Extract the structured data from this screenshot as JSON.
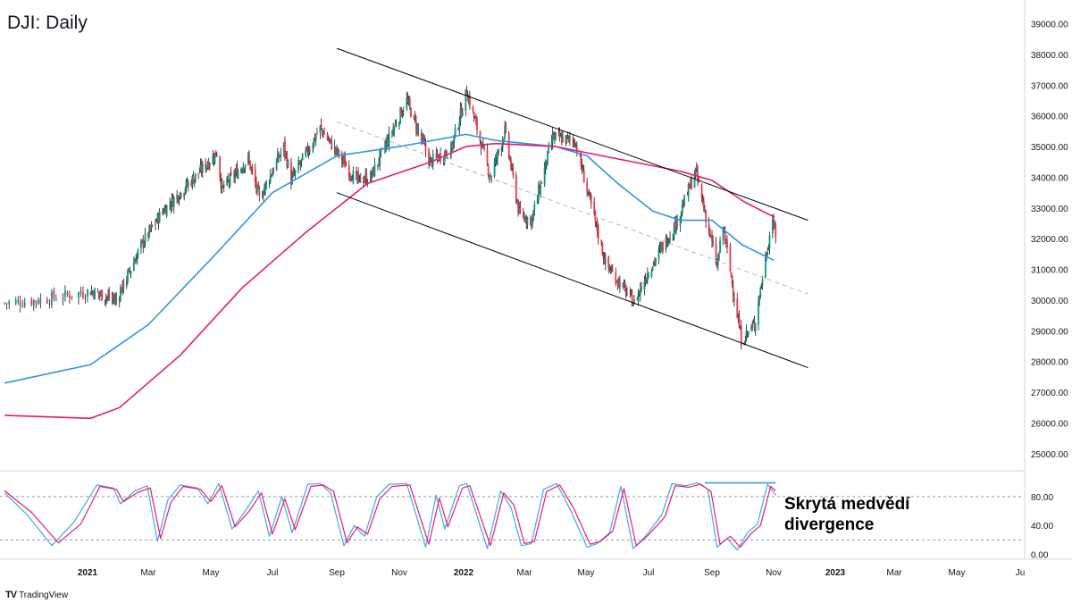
{
  "chart_title": "DJI: Daily",
  "watermark": "TradingView",
  "annotation": {
    "line1": "Skrytá medvědí",
    "line2": "divergence"
  },
  "colors": {
    "ma_fast": "#2f94e6",
    "ma_slow": "#e5196b",
    "stoch_k": "#42a5f5",
    "stoch_d": "#e91e63",
    "candle_up": "#089981",
    "candle_down": "#f23645",
    "trendline": "#000000",
    "midline": "#b2b5be",
    "divergence_line": "#2196f3",
    "axis_text": "#131722"
  },
  "chart_data": [
    {
      "type": "candlestick",
      "title": "DJI: Daily",
      "y_axis_position": "right",
      "ylim": [
        24500,
        39600
      ],
      "y_ticks": [
        "39000.00",
        "38000.00",
        "37000.00",
        "36000.00",
        "35000.00",
        "34000.00",
        "33000.00",
        "32000.00",
        "31000.00",
        "30000.00",
        "29000.00",
        "28000.00",
        "27000.00",
        "26000.00",
        "25000.00"
      ],
      "x_ticks": [
        "2021",
        "Mar",
        "May",
        "Jul",
        "Sep",
        "Nov",
        "2022",
        "Mar",
        "May",
        "Jul",
        "Sep",
        "Nov",
        "2023",
        "Mar",
        "May",
        "Ju"
      ],
      "close_path": [
        [
          "2020-11-25",
          29900
        ],
        [
          "2020-12-10",
          30000
        ],
        [
          "2021-01-04",
          30300
        ],
        [
          "2021-01-29",
          30000
        ],
        [
          "2021-02-24",
          31900
        ],
        [
          "2021-03-15",
          32900
        ],
        [
          "2021-04-15",
          34000
        ],
        [
          "2021-05-07",
          34800
        ],
        [
          "2021-05-12",
          33600
        ],
        [
          "2021-06-07",
          34600
        ],
        [
          "2021-06-18",
          33300
        ],
        [
          "2021-07-12",
          35000
        ],
        [
          "2021-07-19",
          33900
        ],
        [
          "2021-08-16",
          35600
        ],
        [
          "2021-09-20",
          33900
        ],
        [
          "2021-10-04",
          34000
        ],
        [
          "2021-11-08",
          36500
        ],
        [
          "2021-11-30",
          34500
        ],
        [
          "2021-12-20",
          34900
        ],
        [
          "2022-01-04",
          36800
        ],
        [
          "2022-01-27",
          34000
        ],
        [
          "2022-02-10",
          35500
        ],
        [
          "2022-02-24",
          32800
        ],
        [
          "2022-03-08",
          32600
        ],
        [
          "2022-03-29",
          35300
        ],
        [
          "2022-04-20",
          35200
        ],
        [
          "2022-05-20",
          31200
        ],
        [
          "2022-06-17",
          29900
        ],
        [
          "2022-06-30",
          30900
        ],
        [
          "2022-07-28",
          32500
        ],
        [
          "2022-08-16",
          34200
        ],
        [
          "2022-09-06",
          31100
        ],
        [
          "2022-09-12",
          32400
        ],
        [
          "2022-09-30",
          28700
        ],
        [
          "2022-10-13",
          29200
        ],
        [
          "2022-10-31",
          32700
        ],
        [
          "2022-11-03",
          32000
        ]
      ],
      "series": [
        {
          "name": "",
          "kind": "moving_average",
          "color": "#2f94e6",
          "points": [
            [
              "2020-11-25",
              27300
            ],
            [
              "2021-01-04",
              27900
            ],
            [
              "2021-03-01",
              29200
            ],
            [
              "2021-05-03",
              31400
            ],
            [
              "2021-07-01",
              33500
            ],
            [
              "2021-09-01",
              34700
            ],
            [
              "2021-11-01",
              35000
            ],
            [
              "2022-01-03",
              35400
            ],
            [
              "2022-02-01",
              35200
            ],
            [
              "2022-04-01",
              35000
            ],
            [
              "2022-05-02",
              34700
            ],
            [
              "2022-06-01",
              33800
            ],
            [
              "2022-07-05",
              32900
            ],
            [
              "2022-08-01",
              32600
            ],
            [
              "2022-09-01",
              32600
            ],
            [
              "2022-10-01",
              31800
            ],
            [
              "2022-11-01",
              31300
            ]
          ]
        },
        {
          "name": "",
          "kind": "moving_average",
          "color": "#e5196b",
          "points": [
            [
              "2020-11-25",
              26250
            ],
            [
              "2021-01-04",
              26150
            ],
            [
              "2021-02-01",
              26500
            ],
            [
              "2021-04-01",
              28200
            ],
            [
              "2021-06-01",
              30400
            ],
            [
              "2021-08-02",
              32200
            ],
            [
              "2021-10-01",
              33800
            ],
            [
              "2021-12-01",
              34500
            ],
            [
              "2022-01-03",
              35000
            ],
            [
              "2022-02-01",
              35100
            ],
            [
              "2022-04-01",
              35000
            ],
            [
              "2022-06-01",
              34600
            ],
            [
              "2022-08-01",
              34200
            ],
            [
              "2022-09-01",
              33900
            ],
            [
              "2022-10-03",
              33200
            ],
            [
              "2022-11-02",
              32700
            ]
          ]
        }
      ],
      "lines": [
        {
          "kind": "channel_upper",
          "from": [
            "2021-09-01",
            38200
          ],
          "to": [
            "2022-12-05",
            32600
          ]
        },
        {
          "kind": "channel_lower",
          "from": [
            "2021-09-01",
            33500
          ],
          "to": [
            "2022-12-05",
            27800
          ]
        },
        {
          "kind": "channel_midline",
          "from": [
            "2021-09-01",
            35800
          ],
          "to": [
            "2022-12-05",
            30200
          ]
        }
      ]
    },
    {
      "type": "line",
      "title": "",
      "y_axis_position": "right",
      "ylim": [
        -8,
        112
      ],
      "y_ticks": [
        "80.00",
        "40.00",
        "0.00"
      ],
      "reference_lines": [
        80,
        20
      ],
      "divergence_line": {
        "from": [
          "2022-08-25",
          99
        ],
        "to": [
          "2022-11-03",
          99
        ]
      },
      "series": [
        {
          "name": "",
          "kind": "stochastic_k",
          "color": "#42a5f5",
          "points": [
            [
              "2020-11-25",
              85
            ],
            [
              "2020-12-05",
              55
            ],
            [
              "2020-12-16",
              12
            ],
            [
              "2020-12-26",
              45
            ],
            [
              "2021-01-10",
              96
            ],
            [
              "2021-01-26",
              92
            ],
            [
              "2021-02-02",
              70
            ],
            [
              "2021-02-16",
              88
            ],
            [
              "2021-02-28",
              95
            ],
            [
              "2021-03-10",
              18
            ],
            [
              "2021-03-20",
              75
            ],
            [
              "2021-04-01",
              96
            ],
            [
              "2021-04-18",
              92
            ],
            [
              "2021-04-28",
              70
            ],
            [
              "2021-05-09",
              98
            ],
            [
              "2021-05-22",
              35
            ],
            [
              "2021-06-05",
              62
            ],
            [
              "2021-06-17",
              88
            ],
            [
              "2021-06-28",
              25
            ],
            [
              "2021-07-10",
              80
            ],
            [
              "2021-07-20",
              30
            ],
            [
              "2021-08-04",
              97
            ],
            [
              "2021-08-16",
              98
            ],
            [
              "2021-08-26",
              85
            ],
            [
              "2021-09-08",
              12
            ],
            [
              "2021-09-18",
              40
            ],
            [
              "2021-09-28",
              25
            ],
            [
              "2021-10-10",
              80
            ],
            [
              "2021-10-22",
              97
            ],
            [
              "2021-11-08",
              98
            ],
            [
              "2021-11-26",
              10
            ],
            [
              "2021-12-06",
              82
            ],
            [
              "2021-12-14",
              35
            ],
            [
              "2021-12-28",
              95
            ],
            [
              "2022-01-04",
              98
            ],
            [
              "2022-01-24",
              8
            ],
            [
              "2022-02-06",
              88
            ],
            [
              "2022-02-16",
              65
            ],
            [
              "2022-02-26",
              12
            ],
            [
              "2022-03-08",
              15
            ],
            [
              "2022-03-20",
              90
            ],
            [
              "2022-04-02",
              98
            ],
            [
              "2022-04-16",
              60
            ],
            [
              "2022-05-02",
              10
            ],
            [
              "2022-05-12",
              15
            ],
            [
              "2022-05-24",
              30
            ],
            [
              "2022-06-04",
              94
            ],
            [
              "2022-06-16",
              8
            ],
            [
              "2022-06-28",
              25
            ],
            [
              "2022-07-14",
              55
            ],
            [
              "2022-07-24",
              98
            ],
            [
              "2022-08-06",
              95
            ],
            [
              "2022-08-18",
              99
            ],
            [
              "2022-08-28",
              90
            ],
            [
              "2022-09-06",
              10
            ],
            [
              "2022-09-16",
              22
            ],
            [
              "2022-09-26",
              6
            ],
            [
              "2022-10-06",
              30
            ],
            [
              "2022-10-16",
              42
            ],
            [
              "2022-10-26",
              97
            ],
            [
              "2022-11-03",
              82
            ]
          ]
        },
        {
          "name": "",
          "kind": "stochastic_d",
          "color": "#e91e63",
          "points": [
            [
              "2020-11-25",
              88
            ],
            [
              "2020-12-07",
              58
            ],
            [
              "2020-12-19",
              16
            ],
            [
              "2020-12-29",
              42
            ],
            [
              "2021-01-13",
              94
            ],
            [
              "2021-01-29",
              90
            ],
            [
              "2021-02-05",
              73
            ],
            [
              "2021-02-19",
              86
            ],
            [
              "2021-03-03",
              92
            ],
            [
              "2021-03-13",
              22
            ],
            [
              "2021-03-23",
              72
            ],
            [
              "2021-04-04",
              94
            ],
            [
              "2021-04-21",
              90
            ],
            [
              "2021-05-01",
              73
            ],
            [
              "2021-05-12",
              95
            ],
            [
              "2021-05-25",
              38
            ],
            [
              "2021-06-08",
              60
            ],
            [
              "2021-06-20",
              85
            ],
            [
              "2021-07-01",
              28
            ],
            [
              "2021-07-13",
              77
            ],
            [
              "2021-07-23",
              34
            ],
            [
              "2021-08-07",
              94
            ],
            [
              "2021-08-19",
              96
            ],
            [
              "2021-08-29",
              87
            ],
            [
              "2021-09-11",
              16
            ],
            [
              "2021-09-21",
              38
            ],
            [
              "2021-10-01",
              28
            ],
            [
              "2021-10-13",
              77
            ],
            [
              "2021-10-25",
              94
            ],
            [
              "2021-11-11",
              96
            ],
            [
              "2021-11-29",
              14
            ],
            [
              "2021-12-09",
              78
            ],
            [
              "2021-12-17",
              38
            ],
            [
              "2021-12-31",
              92
            ],
            [
              "2022-01-07",
              95
            ],
            [
              "2022-01-27",
              12
            ],
            [
              "2022-02-09",
              85
            ],
            [
              "2022-02-19",
              68
            ],
            [
              "2022-03-01",
              15
            ],
            [
              "2022-03-11",
              18
            ],
            [
              "2022-03-23",
              87
            ],
            [
              "2022-04-05",
              96
            ],
            [
              "2022-04-19",
              63
            ],
            [
              "2022-05-05",
              14
            ],
            [
              "2022-05-15",
              18
            ],
            [
              "2022-05-27",
              32
            ],
            [
              "2022-06-07",
              91
            ],
            [
              "2022-06-19",
              12
            ],
            [
              "2022-07-01",
              27
            ],
            [
              "2022-07-17",
              52
            ],
            [
              "2022-07-27",
              95
            ],
            [
              "2022-08-09",
              93
            ],
            [
              "2022-08-21",
              97
            ],
            [
              "2022-08-31",
              87
            ],
            [
              "2022-09-09",
              14
            ],
            [
              "2022-09-19",
              25
            ],
            [
              "2022-09-29",
              10
            ],
            [
              "2022-10-09",
              28
            ],
            [
              "2022-10-19",
              40
            ],
            [
              "2022-10-29",
              94
            ],
            [
              "2022-11-03",
              88
            ]
          ]
        }
      ]
    }
  ]
}
